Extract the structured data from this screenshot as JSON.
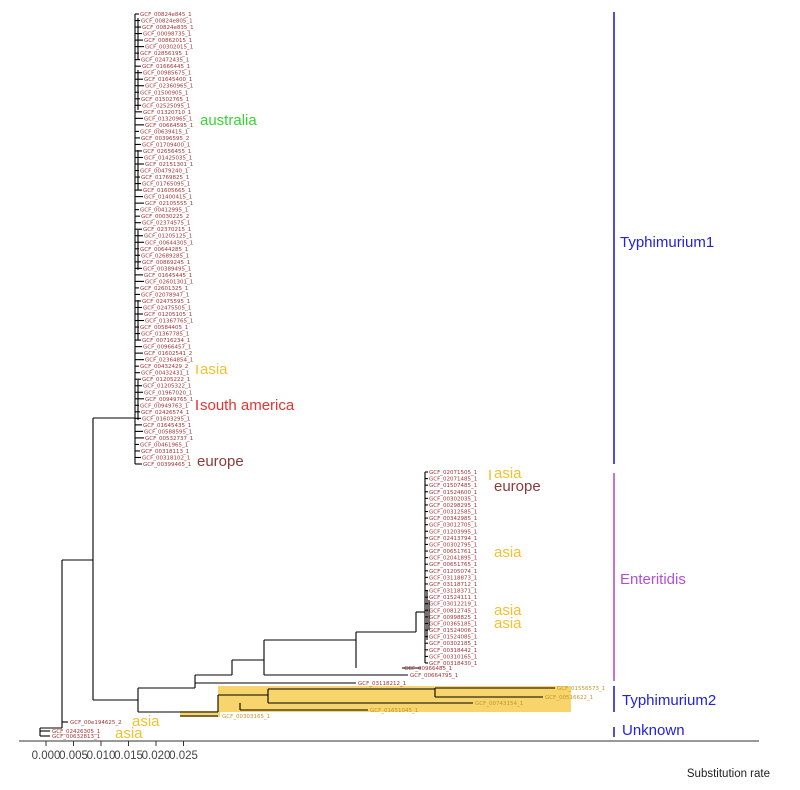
{
  "colors": {
    "branch": "#000000",
    "tip_label": "#a33333",
    "highlight": "#f7d56c",
    "highlight_text": "#c0962a",
    "typhimurium1": "#2222dd",
    "enteritidis": "#b04fd8",
    "typhimurium2": "#2222dd",
    "unknown": "#2222dd",
    "australia": "#39d434",
    "asia": "#f2c12e",
    "south_america": "#e8332f",
    "europe": "#8b3a3a"
  },
  "clades": [
    {
      "name": "Typhimurium1",
      "color": "#2222dd"
    },
    {
      "name": "Enteritidis",
      "color": "#b04fd8"
    },
    {
      "name": "Typhimurium2",
      "color": "#2222dd"
    },
    {
      "name": "Unknown",
      "color": "#2222dd"
    }
  ],
  "regions": [
    {
      "label": "australia",
      "color": "#39d434"
    },
    {
      "label": "asia",
      "color": "#f2c12e"
    },
    {
      "label": "south america",
      "color": "#e8332f"
    },
    {
      "label": "europe",
      "color": "#8b3a3a"
    },
    {
      "label": "asia",
      "color": "#f2c12e"
    },
    {
      "label": "europe",
      "color": "#8b3a3a"
    },
    {
      "label": "asia",
      "color": "#f2c12e"
    },
    {
      "label": "asia",
      "color": "#f2c12e"
    },
    {
      "label": "asia",
      "color": "#f2c12e"
    },
    {
      "label": "asia",
      "color": "#f2c12e"
    },
    {
      "label": "asia",
      "color": "#f2c12e"
    }
  ],
  "axis": {
    "title": "Substitution rate",
    "ticks": [
      "0.000",
      "0.005",
      "0.010",
      "0.015",
      "0.020",
      "0.025"
    ],
    "tick_values": [
      0.0,
      0.005,
      0.01,
      0.015,
      0.02,
      0.025
    ],
    "range": [
      -0.0012,
      0.0255
    ]
  },
  "tips": {
    "typhimurium1": [
      "GCF_00824e845_1",
      "GCF_00824e805_1",
      "GCF_00824e835_1",
      "GCF_00098735_1",
      "GCF_00862015_1",
      "GCF_00302015_1",
      "GCF_02856195_1",
      "GCF_02472435_1",
      "GCF_01666445_1",
      "GCF_00985675_1",
      "GCF_01645400_1",
      "GCF_02360965_1",
      "GCF_01500905_1",
      "GCF_01502765_1",
      "GCF_02525095_1",
      "GCF_01320710_1",
      "GCF_01320965_1",
      "GCF_00664595_1",
      "GCF_00639415_1",
      "GCF_00396595_2",
      "GCF_01709400_1",
      "GCF_02656455_1",
      "GCF_01425035_1",
      "GCF_02151301_1",
      "GCF_00479240_1",
      "GCF_01769825_1",
      "GCF_01765095_1",
      "GCF_01605665_1",
      "GCF_01400415_1",
      "GCF_02105555_1",
      "GCF_00412995_1",
      "GCF_00030225_2",
      "GCF_02374575_1",
      "GCF_02370215_1",
      "GCF_01205125_1",
      "GCF_00644305_1",
      "GCF_00644285_1",
      "GCF_02689285_1",
      "GCF_00869245_1",
      "GCF_00389495_1",
      "GCF_01645445_1",
      "GCF_02601301_1",
      "GCF_02601325_1",
      "GCF_02078947_1",
      "GCF_02475595_1",
      "GCF_02475505_1",
      "GCF_01205105_1",
      "GCF_01367765_1",
      "GCF_00584405_1",
      "GCF_01367785_1",
      "GCF_00716234_1",
      "GCF_00966457_1",
      "GCF_01602541_2",
      "GCF_02364854_1",
      "GCF_00432429_2",
      "GCF_00432431_1",
      "GCF_01205222_1",
      "GCF_01205322_1",
      "GCF_01967020_1",
      "GCF_00949765_1",
      "GCF_00949763_1",
      "GCF_02426574_1",
      "GCF_01603295_1",
      "GCF_01645435_1",
      "GCF_00588595_1",
      "GCF_00532737_1",
      "GCF_00461965_1",
      "GCF_00318113_1",
      "GCF_00318102_1",
      "GCF_00399465_1"
    ],
    "enteritidis": [
      "GCF_02071505_1",
      "GCF_02071485_1",
      "GCF_01507485_1",
      "GCF_01524600_1",
      "GCF_00302035_1",
      "GCF_00298295_1",
      "GCF_00312585_1",
      "GCF_00342985_1",
      "GCF_03012705_1",
      "GCF_01203995_1",
      "GCF_02413794_1",
      "GCF_00302795_1",
      "GCF_00651761_1",
      "GCF_02041895_1",
      "GCF_00651765_1",
      "GCF_01205074_1",
      "GCF_03118873_1",
      "GCF_03118712_1",
      "GCF_03118371_1",
      "GCF_01524111_1",
      "GCF_03012219_1",
      "GCF_00812745_1",
      "GCF_00998825_1",
      "GCF_00365185_1",
      "GCF_01524006_1",
      "GCF_01524085_1",
      "GCF_00302185_1",
      "GCF_00318442_1",
      "GCF_00310165_1",
      "GCF_00318430_1"
    ],
    "outer": [
      "GCF_00966485_1",
      "GCF_00664795_1",
      "GCF_03118212_1",
      "GCF_01556573_1",
      "GCF_00516622_1",
      "GCF_00743154_1",
      "GCF_01651045_1",
      "GCF_00303165_1",
      "GCF_00e194625_2",
      "GCF_02426305_1",
      "GCF_00632813_1"
    ]
  }
}
